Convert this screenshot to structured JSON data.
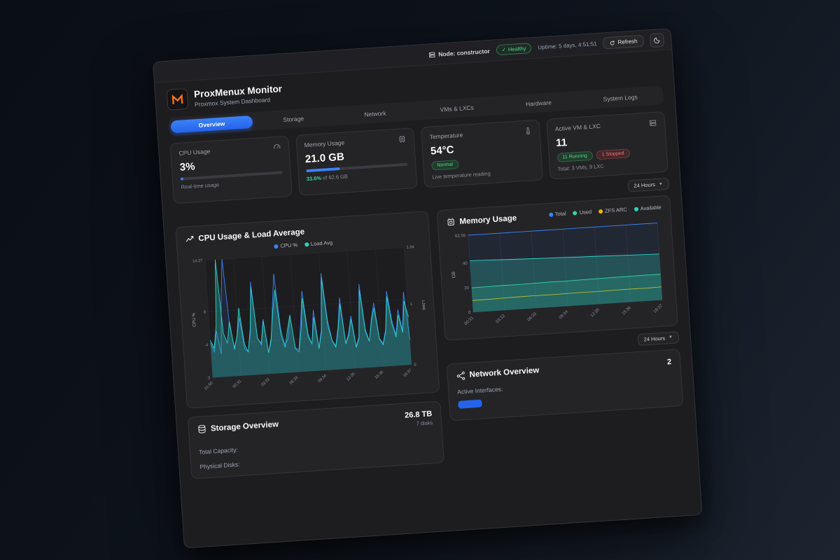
{
  "topbar": {
    "node": "Node: constructor",
    "health": "Healthy",
    "uptime": "Uptime: 5 days, 4:51:51",
    "refresh": "Refresh"
  },
  "header": {
    "title": "ProxMenux Monitor",
    "subtitle": "Proxmox System Dashboard"
  },
  "tabs": [
    {
      "label": "Overview"
    },
    {
      "label": "Storage"
    },
    {
      "label": "Network"
    },
    {
      "label": "VMs & LXCs"
    },
    {
      "label": "Hardware"
    },
    {
      "label": "System Logs"
    }
  ],
  "cards": {
    "cpu": {
      "title": "CPU Usage",
      "value": "3%",
      "percent": 3,
      "caption": "Real-time usage"
    },
    "memory": {
      "title": "Memory Usage",
      "value": "21.0 GB",
      "percent": 33.6,
      "caption_highlight": "33.6%",
      "caption_rest": " of 62.6 GB"
    },
    "temperature": {
      "title": "Temperature",
      "value": "54°C",
      "badge": "Normal",
      "caption": "Live temperature reading"
    },
    "vms": {
      "title": "Active VM & LXC",
      "value": "11",
      "running": "11 Running",
      "stopped": "1 Stopped",
      "caption": "Total: 3 VMs, 9 LXC"
    }
  },
  "time_range": "24 Hours",
  "storage": {
    "title": "Storage Overview",
    "summary_value": "26.8 TB",
    "summary_caption": "7 disks",
    "rows": [
      {
        "label": "Total Capacity:"
      },
      {
        "label": "Physical Disks:"
      }
    ]
  },
  "network": {
    "title": "Network Overview",
    "summary_value": "2",
    "row_label": "Active Interfaces:"
  },
  "colors": {
    "accent": "#3b82f6",
    "green": "#34d399",
    "teal": "#2dd4bf",
    "yellow": "#eab308",
    "red": "#ef4444",
    "orange": "#f97316"
  },
  "chart_data": [
    {
      "type": "area",
      "title": "CPU Usage & Load Average",
      "legend": [
        "CPU %",
        "Load Avg"
      ],
      "colors": [
        "#3b82f6",
        "#2dd4bf"
      ],
      "x_ticks": [
        "21:50",
        "00:31",
        "03:32",
        "06:33",
        "09:34",
        "12:35",
        "15:36",
        "18:37"
      ],
      "y_left": {
        "label": "CPU %",
        "ticks": [
          0,
          4,
          8,
          14.27
        ],
        "max": 14.27
      },
      "y_right": {
        "label": "Load",
        "ticks": [
          0,
          1,
          1.94
        ],
        "max": 1.94
      },
      "series": [
        {
          "name": "CPU %",
          "axis": "left",
          "values": [
            4.2,
            3.1,
            5.6,
            2.8,
            9.4,
            14.27,
            6.2,
            3.5,
            4.8,
            7.1,
            3.2,
            2.9,
            5.1,
            11.3,
            4.4,
            3.8,
            6.7,
            2.6,
            3.9,
            8.2,
            12.1,
            5.3,
            3.4,
            4.1,
            6.9,
            3.0,
            2.7,
            5.8,
            9.8,
            4.6,
            3.3,
            7.4,
            2.8,
            4.9,
            11.8,
            6.1,
            3.6,
            2.9,
            5.2,
            8.7,
            3.1,
            4.3,
            6.4,
            2.7,
            3.8,
            10.2,
            4.7,
            3.2,
            5.9,
            7.8,
            3.5,
            2.8,
            4.4,
            9.1,
            5.6,
            3.7,
            6.8,
            4.2,
            8.9,
            3.0
          ]
        },
        {
          "name": "Load Avg",
          "axis": "right",
          "values": [
            0.62,
            0.48,
            0.85,
            1.94,
            0.72,
            0.55,
            0.91,
            0.44,
            0.67,
            1.12,
            0.53,
            0.38,
            0.76,
            1.45,
            0.61,
            0.49,
            0.88,
            0.35,
            0.58,
            1.02,
            1.38,
            0.64,
            0.42,
            0.71,
            0.95,
            0.39,
            0.33,
            0.68,
            1.21,
            0.57,
            0.45,
            0.89,
            0.36,
            0.63,
            1.52,
            0.74,
            0.48,
            0.37,
            0.66,
            1.08,
            0.41,
            0.55,
            0.82,
            0.34,
            0.49,
            1.29,
            0.59,
            0.43,
            0.77,
            0.98,
            0.46,
            0.36,
            0.57,
            1.15,
            0.69,
            0.47,
            0.84,
            0.54,
            1.06,
            0.79
          ]
        }
      ]
    },
    {
      "type": "area",
      "title": "Memory Usage",
      "legend": [
        "Total",
        "Used",
        "ZFS ARC",
        "Available"
      ],
      "colors": [
        "#3b82f6",
        "#34d399",
        "#eab308",
        "#2dd4bf"
      ],
      "x_ticks": [
        "00:31",
        "03:32",
        "06:33",
        "09:34",
        "12:35",
        "15:36",
        "18:37"
      ],
      "y_left": {
        "label": "GB",
        "ticks": [
          0,
          20,
          40,
          62.56
        ],
        "max": 62.56
      },
      "series": [
        {
          "name": "Total",
          "axis": "left",
          "values": [
            62.56,
            62.56,
            62.56,
            62.56,
            62.56,
            62.56,
            62.56,
            62.56,
            62.56,
            62.56,
            62.56,
            62.56,
            62.56
          ]
        },
        {
          "name": "Used",
          "axis": "left",
          "values": [
            19.8,
            19.9,
            20.1,
            20.0,
            20.2,
            20.4,
            20.3,
            20.5,
            20.6,
            20.8,
            20.9,
            21.0,
            21.0
          ]
        },
        {
          "name": "ZFS ARC",
          "axis": "left",
          "values": [
            9.5,
            9.6,
            9.8,
            10.0,
            10.1,
            10.0,
            10.2,
            10.3,
            10.2,
            10.4,
            10.5,
            10.4,
            10.6
          ]
        },
        {
          "name": "Available",
          "axis": "left",
          "values": [
            41.8,
            41.5,
            41.0,
            40.6,
            40.2,
            39.8,
            39.5,
            39.1,
            38.8,
            38.4,
            38.0,
            37.7,
            37.4
          ]
        }
      ]
    }
  ]
}
